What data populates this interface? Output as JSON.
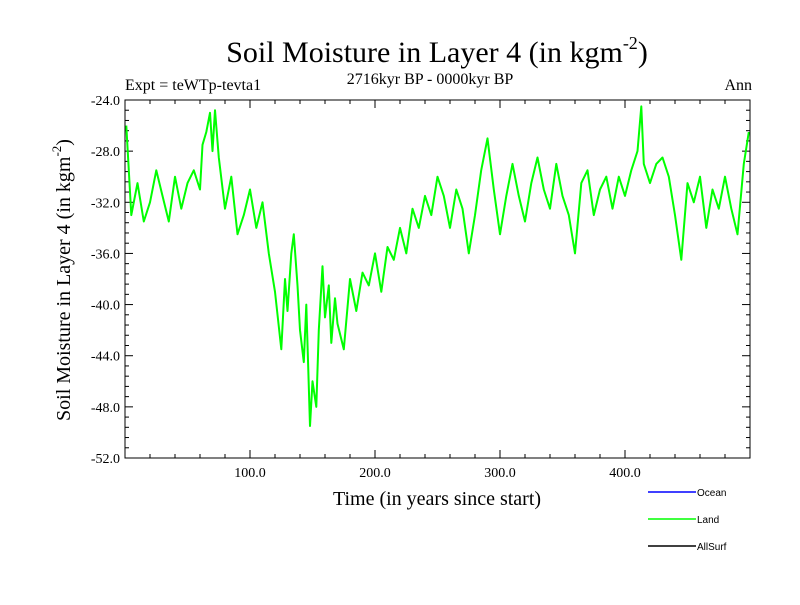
{
  "chart_data": {
    "type": "line",
    "title": "Soil Moisture in Layer 4 (in kgm",
    "title_superscript": "-2",
    "title_close": ")",
    "subtitle": "2716kyr BP - 0000kyr BP",
    "experiment": "Expt = teWTp-tevta1",
    "season": "Ann",
    "xlabel": "Time (in years since start)",
    "ylabel": "Soil Moisture in Layer 4 (in kgm",
    "ylabel_superscript": "-2",
    "ylabel_close": ")",
    "xlim": [
      0,
      500
    ],
    "ylim": [
      -52,
      -24
    ],
    "x_ticks": [
      100,
      200,
      300,
      400
    ],
    "x_tick_labels": [
      "100.0",
      "200.0",
      "300.0",
      "400.0"
    ],
    "y_ticks": [
      -24,
      -28,
      -32,
      -36,
      -40,
      -44,
      -48,
      -52
    ],
    "y_tick_labels": [
      "-24.0",
      "-28.0",
      "-32.0",
      "-36.0",
      "-40.0",
      "-44.0",
      "-48.0",
      "-52.0"
    ],
    "legend_position": "bottom-right",
    "series": [
      {
        "name": "Ocean",
        "color": "#0000ff",
        "x": [],
        "values": []
      },
      {
        "name": "Land",
        "color": "#00ff00",
        "x": [
          1,
          5,
          10,
          15,
          20,
          25,
          30,
          35,
          40,
          45,
          50,
          55,
          60,
          62,
          65,
          68,
          70,
          72,
          75,
          80,
          85,
          90,
          95,
          100,
          105,
          110,
          115,
          120,
          125,
          128,
          130,
          133,
          135,
          138,
          140,
          143,
          145,
          148,
          150,
          153,
          155,
          158,
          160,
          163,
          165,
          168,
          170,
          175,
          180,
          185,
          190,
          195,
          200,
          205,
          210,
          215,
          220,
          225,
          230,
          235,
          240,
          245,
          250,
          255,
          260,
          265,
          270,
          275,
          280,
          285,
          290,
          295,
          300,
          305,
          310,
          315,
          320,
          325,
          330,
          335,
          340,
          345,
          350,
          355,
          360,
          365,
          370,
          375,
          380,
          385,
          390,
          395,
          400,
          405,
          410,
          413,
          415,
          420,
          425,
          430,
          435,
          440,
          445,
          450,
          455,
          460,
          465,
          470,
          475,
          480,
          485,
          490,
          495,
          499
        ],
        "values": [
          -26.0,
          -33.0,
          -30.5,
          -33.5,
          -32.0,
          -29.5,
          -31.5,
          -33.5,
          -30.0,
          -32.5,
          -30.5,
          -29.5,
          -31.0,
          -27.5,
          -26.5,
          -25.0,
          -28.0,
          -24.8,
          -28.5,
          -32.5,
          -30.0,
          -34.5,
          -33.0,
          -31.0,
          -34.0,
          -32.0,
          -36.0,
          -39.0,
          -43.5,
          -38.0,
          -40.5,
          -36.0,
          -34.5,
          -38.5,
          -42.0,
          -44.5,
          -40.0,
          -49.5,
          -46.0,
          -48.0,
          -42.0,
          -37.0,
          -41.0,
          -38.5,
          -43.0,
          -39.5,
          -41.5,
          -43.5,
          -38.0,
          -40.5,
          -37.5,
          -38.5,
          -36.0,
          -39.0,
          -35.5,
          -36.5,
          -34.0,
          -36.0,
          -32.5,
          -34.0,
          -31.5,
          -33.0,
          -30.0,
          -31.5,
          -34.0,
          -31.0,
          -32.5,
          -36.0,
          -33.0,
          -29.5,
          -27.0,
          -31.0,
          -34.5,
          -31.5,
          -29.0,
          -31.5,
          -33.5,
          -30.5,
          -28.5,
          -31.0,
          -32.5,
          -29.0,
          -31.5,
          -33.0,
          -36.0,
          -30.5,
          -29.5,
          -33.0,
          -31.0,
          -30.0,
          -32.5,
          -30.0,
          -31.5,
          -29.5,
          -28.0,
          -24.5,
          -29.0,
          -30.5,
          -29.0,
          -28.5,
          -30.0,
          -33.0,
          -36.5,
          -30.5,
          -32.0,
          -30.0,
          -34.0,
          -31.0,
          -32.5,
          -30.0,
          -32.5,
          -34.5,
          -29.0,
          -26.5
        ]
      },
      {
        "name": "AllSurf",
        "color": "#000000",
        "x": [],
        "values": []
      }
    ]
  }
}
